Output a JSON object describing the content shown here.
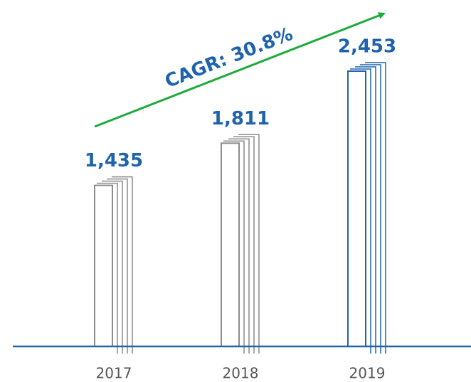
{
  "chart_data": {
    "type": "bar",
    "categories": [
      "2017",
      "2018",
      "2019"
    ],
    "values": [
      1435,
      1811,
      2453
    ],
    "value_labels": [
      "1,435",
      "1,811",
      "2,453"
    ],
    "colors": [
      "#8c8c8c",
      "#8c8c8c",
      "#1f63ad"
    ],
    "annotation": "CAGR: 30.8%"
  }
}
